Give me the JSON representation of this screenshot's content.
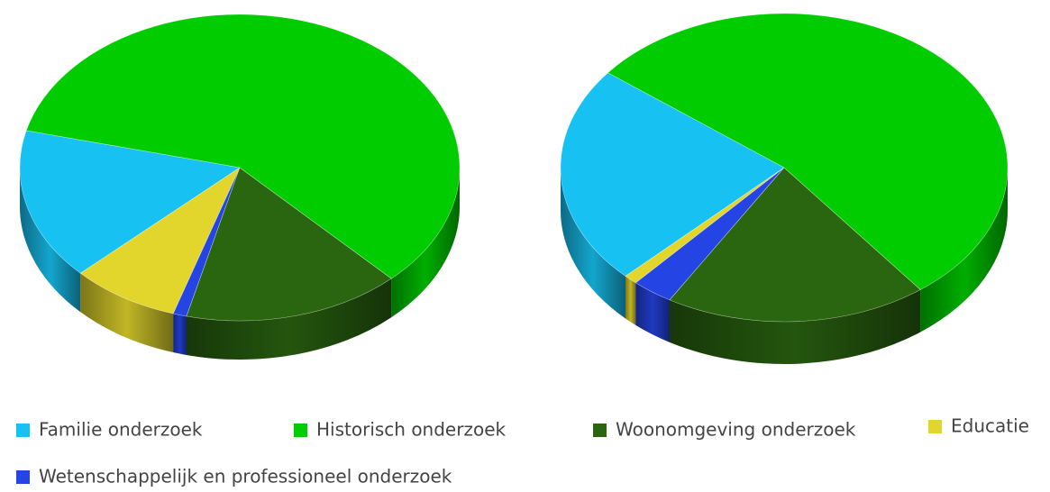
{
  "chart_data": {
    "type": "pie",
    "categories": [
      "Familie onderzoek",
      "Historisch onderzoek",
      "Woonomgeving onderzoek",
      "Educatie",
      "Wetenschappelijk en professioneel onderzoek"
    ],
    "colors": [
      "#17c2f2",
      "#00cc00",
      "#2a6510",
      "#e2d62c",
      "#2444e4"
    ],
    "series": [
      {
        "values": [
          16,
          59,
          16,
          8,
          1
        ]
      },
      {
        "values": [
          23,
          54,
          19,
          1,
          3
        ]
      }
    ]
  }
}
